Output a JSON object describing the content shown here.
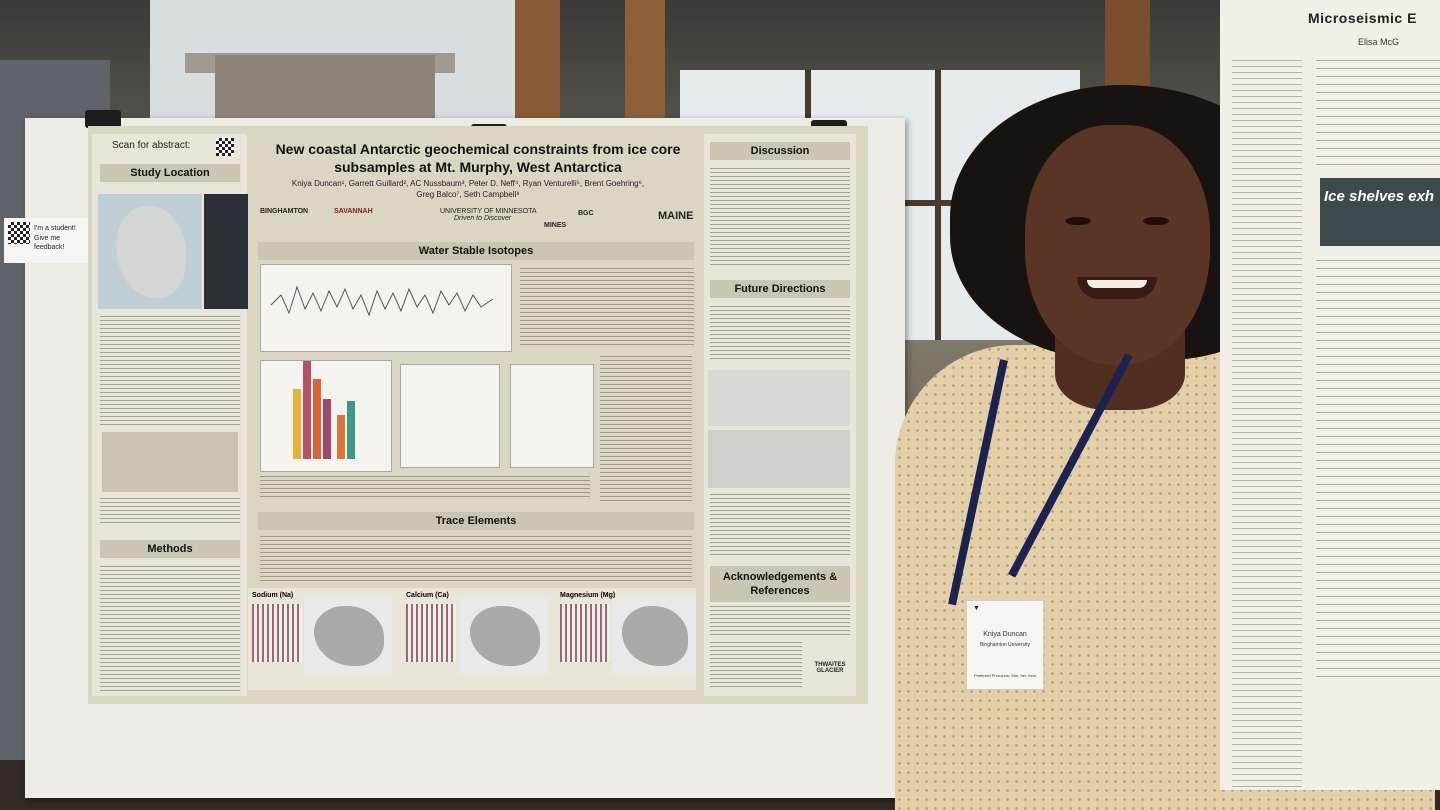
{
  "poster": {
    "title_line1": "New coastal Antarctic geochemical constraints from ice core",
    "title_line2": "subsamples at Mt. Murphy, West Antarctica",
    "authors_line1": "Kniya Duncan¹, Garrett Guillard², AC Nussbaum³, Peter D. Neff⁴, Ryan Venturelli⁵, Brent Goehring⁶,",
    "authors_line2": "Greg Balco⁷, Seth Campbell⁸",
    "scan_label": "Scan for abstract:",
    "sections": {
      "study_location": "Study Location",
      "methods": "Methods",
      "water_isotopes": "Water Stable Isotopes",
      "trace_elements": "Trace Elements",
      "discussion": "Discussion",
      "future": "Future Directions",
      "ack": "Acknowledgements & References"
    },
    "maps": {
      "sodium": "Sodium (Na)",
      "calcium": "Calcium (Ca)",
      "magnesium": "Magnesium (Mg)"
    },
    "logos": {
      "binghamton": "BINGHAMTON",
      "savannah": "SAVANNAH",
      "minnesota": "UNIVERSITY OF MINNESOTA",
      "minnesota_tag": "Driven to Discover",
      "mines": "MINES",
      "bge": "BGC",
      "maine": "MAINE",
      "thwaites": "THWAITES GLACIER"
    }
  },
  "sticky_note": {
    "line1": "I'm a student!",
    "line2": "Give me feedback!"
  },
  "badge": {
    "name": "Kniya Duncan",
    "school": "Binghamton University",
    "pronouns": "Preferred Pronouns: She, her, hers"
  },
  "poster2": {
    "title": "Microseismic E",
    "author": "Elisa McG",
    "banner": "Ice shelves exh"
  }
}
